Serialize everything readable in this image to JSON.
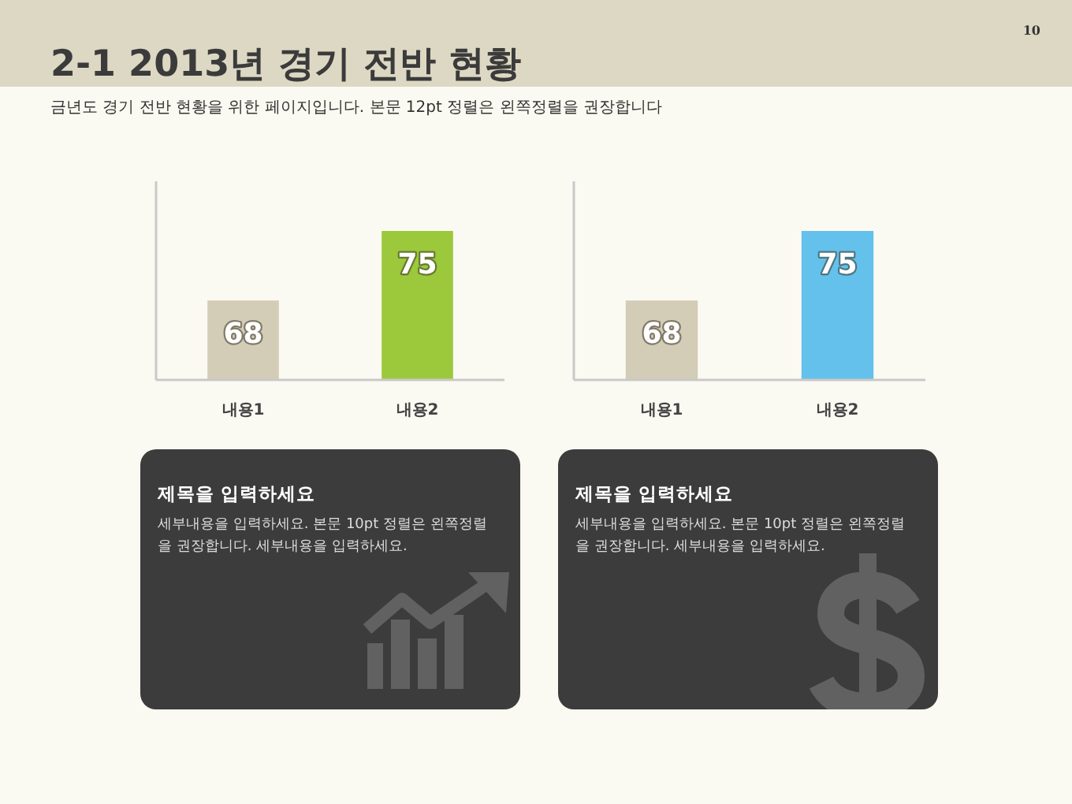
{
  "chart_data": [
    {
      "type": "other",
      "title": "2-1 2013년 경기 전반 현황",
      "subtitle": "금년도 경기 전반 현황을 위한 페이지입니다. 본문 12pt 정렬은 왼쪽정렬을 권장합니다",
      "annotations": [
        "10"
      ]
    },
    {
      "type": "bar",
      "categories": [
        "내용1",
        "내용2"
      ],
      "values": [
        68,
        75
      ],
      "colors": [
        "#d3cdb7",
        "#9cc83b"
      ],
      "data_labels": true,
      "ylim": [
        60,
        80
      ],
      "tick_labels": "x"
    },
    {
      "type": "bar",
      "categories": [
        "내용1",
        "내용2"
      ],
      "values": [
        68,
        75
      ],
      "colors": [
        "#d3cdb7",
        "#64c1eb"
      ],
      "data_labels": true,
      "ylim": [
        60,
        80
      ],
      "tick_labels": "x"
    },
    {
      "type": "other",
      "title": "제목을 입력하세요",
      "annotations": [
        "세부내용을 입력하세요. 본문 10pt 정렬은 왼쪽정렬을 권장합니다. 세부내용을 입력하세요."
      ]
    },
    {
      "type": "other",
      "title": "제목을 입력하세요",
      "annotations": [
        "세부내용을 입력하세요. 본문 10pt 정렬은 왼쪽정렬을 권장합니다. 세부내용을 입력하세요."
      ]
    }
  ]
}
